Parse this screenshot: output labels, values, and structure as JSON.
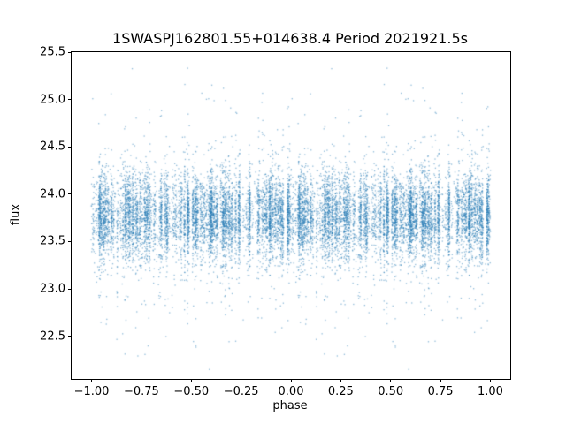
{
  "figure": {
    "background": "#ffffff"
  },
  "chart_data": {
    "type": "scatter",
    "title": "1SWASPJ162801.55+014638.4 Period 2021921.5s",
    "xlabel": "phase",
    "ylabel": "flux",
    "xlim": [
      -1.1,
      1.1
    ],
    "ylim": [
      22.05,
      25.5
    ],
    "xticks": [
      -1.0,
      -0.75,
      -0.5,
      -0.25,
      0.0,
      0.25,
      0.5,
      0.75,
      1.0
    ],
    "xtick_labels": [
      "−1.00",
      "−0.75",
      "−0.50",
      "−0.25",
      "0.00",
      "0.25",
      "0.50",
      "0.75",
      "1.00"
    ],
    "yticks": [
      22.5,
      23.0,
      23.5,
      24.0,
      24.5,
      25.0,
      25.5
    ],
    "ytick_labels": [
      "22.5",
      "23.0",
      "23.5",
      "24.0",
      "24.5",
      "25.0",
      "25.5"
    ],
    "marker_color": "#1f77b4",
    "marker_alpha": 0.5,
    "axis_color": "#000000",
    "grid": false,
    "legend": null,
    "point_cloud": {
      "description": "Dense folded light-curve photometry: noisy flux band centered near 23.8 with vertical sample streaks, occasional deep dips to ~22.2 and spikes to ~25.3; data duplicated over phase -1..0 and 0..1",
      "n_points": 15000,
      "x_range": [
        -1.0,
        1.0
      ],
      "mirrored": true,
      "y_center": 23.77,
      "y_sigma_core": 0.22,
      "wide_fraction": 0.1,
      "y_sigma_wide": 0.45,
      "y_min": 22.15,
      "y_max": 25.35,
      "n_clusters": 230,
      "cluster_jitter": 0.0025,
      "dip_cluster_fraction": 0.18,
      "spike_cluster_fraction": 0.22,
      "stray_fraction": 0.008,
      "seed": 42
    }
  }
}
